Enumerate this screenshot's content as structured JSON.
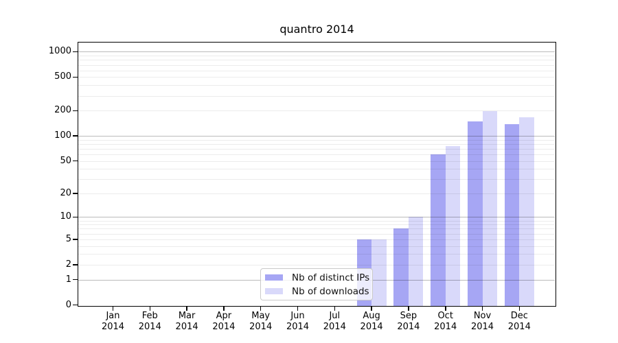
{
  "title": "quantro 2014",
  "chart_data": {
    "type": "bar",
    "title": "quantro 2014",
    "categories": [
      "Jan",
      "Feb",
      "Mar",
      "Apr",
      "May",
      "Jun",
      "Jul",
      "Aug",
      "Sep",
      "Oct",
      "Nov",
      "Dec"
    ],
    "x_year_label": "2014",
    "series": [
      {
        "name": "Nb of distinct IPs",
        "color": "#a6a6f4",
        "values": [
          0,
          0,
          0,
          0,
          0,
          0,
          0,
          5,
          7,
          60,
          149,
          138
        ]
      },
      {
        "name": "Nb of downloads",
        "color": "#d9d9fa",
        "values": [
          0,
          0,
          0,
          0,
          0,
          0,
          0,
          5,
          10,
          76,
          196,
          168
        ]
      }
    ],
    "y_ticks": [
      0,
      1,
      2,
      5,
      10,
      20,
      50,
      100,
      200,
      500,
      1000
    ],
    "y_scale": "log10(1+x)",
    "y_major_gridlines": [
      1,
      10,
      100,
      1000
    ],
    "grid": true,
    "legend_position": "bottom-center-left",
    "colors": {
      "spine": "#000000",
      "grid_major": "#bdbdbd",
      "grid_minor": "#ececec",
      "background": "#ffffff"
    }
  }
}
